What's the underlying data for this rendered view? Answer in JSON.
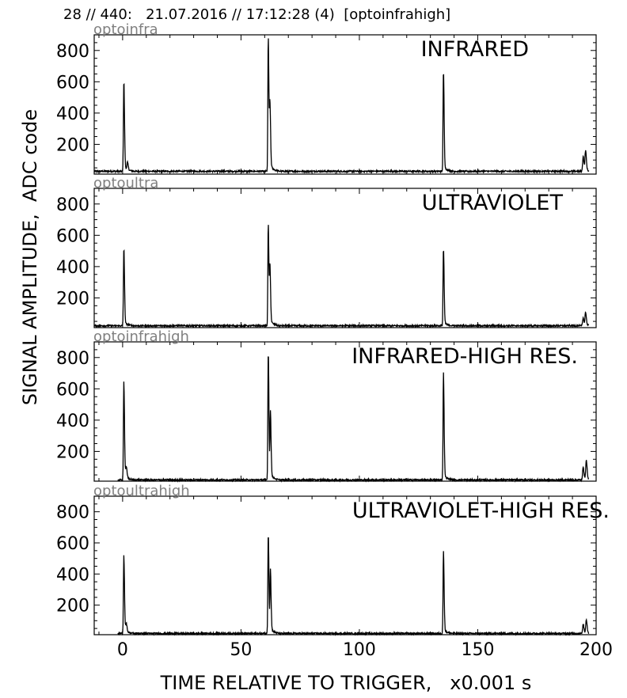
{
  "header": {
    "title": "28 // 440:   21.07.2016 // 17:12:28 (4)  [optoinfrahigh]"
  },
  "chart_data": {
    "type": "line",
    "xlabel": "TIME RELATIVE TO TRIGGER,   x0.001 s",
    "ylabel": "SIGNAL AMPLITUDE,  ADC code",
    "xlim": [
      -12,
      200
    ],
    "ylim": [
      10,
      900
    ],
    "x_ticks": [
      0,
      50,
      100,
      150,
      200
    ],
    "y_ticks": [
      200,
      400,
      600,
      800
    ],
    "line_color": "#000000",
    "sublabel_color": "#808080",
    "panels": [
      {
        "sublabel": "optoinfra",
        "title": "INFRARED",
        "baseline": 28,
        "series": {
          "name": "",
          "peaks": [
            {
              "x": 0.5,
              "y": 590
            },
            {
              "x": 2.0,
              "y": 75
            },
            {
              "x": 61.5,
              "y": 850
            },
            {
              "x": 62.2,
              "y": 420
            },
            {
              "x": 135.5,
              "y": 645
            },
            {
              "x": 194.5,
              "y": 120
            },
            {
              "x": 195.5,
              "y": 155
            }
          ]
        }
      },
      {
        "sublabel": "optoultra",
        "title": "ULTRAVIOLET",
        "baseline": 22,
        "series": {
          "name": "",
          "peaks": [
            {
              "x": 0.5,
              "y": 505
            },
            {
              "x": 61.5,
              "y": 645
            },
            {
              "x": 62.2,
              "y": 370
            },
            {
              "x": 135.5,
              "y": 500
            },
            {
              "x": 194.5,
              "y": 70
            },
            {
              "x": 195.5,
              "y": 105
            }
          ]
        }
      },
      {
        "sublabel": "optoinfrahigh",
        "title": "INFRARED-HIGH RES.",
        "baseline": 18,
        "series": {
          "name": "",
          "peaks": [
            {
              "x": 0.5,
              "y": 615
            },
            {
              "x": 1.5,
              "y": 85
            },
            {
              "x": 61.5,
              "y": 810
            },
            {
              "x": 62.4,
              "y": 420
            },
            {
              "x": 135.5,
              "y": 670
            },
            {
              "x": 194.5,
              "y": 100
            },
            {
              "x": 195.8,
              "y": 140
            }
          ]
        }
      },
      {
        "sublabel": "optoultrahigh",
        "title": "ULTRAVIOLET-HIGH RES.",
        "baseline": 18,
        "series": {
          "name": "",
          "peaks": [
            {
              "x": 0.5,
              "y": 495
            },
            {
              "x": 1.5,
              "y": 70
            },
            {
              "x": 61.5,
              "y": 640
            },
            {
              "x": 62.4,
              "y": 400
            },
            {
              "x": 135.5,
              "y": 520
            },
            {
              "x": 194.5,
              "y": 75
            },
            {
              "x": 195.8,
              "y": 105
            }
          ]
        }
      }
    ]
  }
}
